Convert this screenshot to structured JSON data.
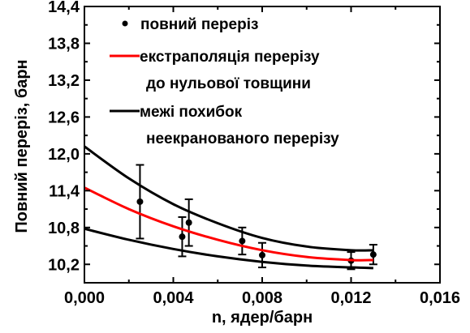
{
  "chart_data": {
    "type": "scatter",
    "xlabel": "n, ядер/барн",
    "ylabel": "Повний переріз, барн",
    "xlim": [
      0.0,
      0.016
    ],
    "ylim": [
      9.9,
      14.4
    ],
    "x_ticks": [
      "0,000",
      "0,004",
      "0,008",
      "0,012",
      "0,016"
    ],
    "x_tick_values": [
      0.0,
      0.004,
      0.008,
      0.012,
      0.016
    ],
    "y_ticks": [
      "10,2",
      "10,8",
      "11,4",
      "12,0",
      "12,6",
      "13,2",
      "13,8",
      "14,4"
    ],
    "y_tick_values": [
      10.2,
      10.8,
      11.4,
      12.0,
      12.6,
      13.2,
      13.8,
      14.4
    ],
    "grid": false,
    "legend_position": "top-right",
    "series": [
      {
        "name": "повний переріз",
        "kind": "points_with_errorbars",
        "color": "#000000",
        "points": [
          {
            "x": 0.0025,
            "y": 11.22,
            "err": 0.6
          },
          {
            "x": 0.0044,
            "y": 10.65,
            "err": 0.32
          },
          {
            "x": 0.0047,
            "y": 10.88,
            "err": 0.38
          },
          {
            "x": 0.0071,
            "y": 10.58,
            "err": 0.22
          },
          {
            "x": 0.008,
            "y": 10.35,
            "err": 0.2
          },
          {
            "x": 0.012,
            "y": 10.26,
            "err": 0.14
          },
          {
            "x": 0.013,
            "y": 10.36,
            "err": 0.16
          }
        ]
      },
      {
        "name": "екстраполяція перерізу до нульової товщини",
        "kind": "line",
        "color": "#ff0000",
        "x": [
          0.0,
          0.002,
          0.004,
          0.006,
          0.008,
          0.01,
          0.012,
          0.013
        ],
        "y": [
          11.45,
          11.1,
          10.82,
          10.6,
          10.43,
          10.32,
          10.27,
          10.27
        ]
      },
      {
        "name": "межі похибок неекранованого перерізу",
        "kind": "line",
        "color": "#000000",
        "x": [
          0.0,
          0.002,
          0.004,
          0.006,
          0.008,
          0.01,
          0.012,
          0.013
        ],
        "y": [
          12.12,
          11.6,
          11.18,
          10.87,
          10.63,
          10.49,
          10.43,
          10.43
        ]
      },
      {
        "name": "",
        "kind": "line",
        "color": "#000000",
        "x": [
          0.0,
          0.002,
          0.004,
          0.006,
          0.008,
          0.01,
          0.012,
          0.013
        ],
        "y": [
          10.78,
          10.6,
          10.45,
          10.33,
          10.24,
          10.18,
          10.15,
          10.14
        ]
      }
    ],
    "legend": [
      {
        "label": "повний переріз",
        "marker": "dot",
        "color": "#000000"
      },
      {
        "label_lines": [
          "екстраполяція перерізу",
          "до нульової товщини"
        ],
        "marker": "line",
        "color": "#ff0000"
      },
      {
        "label_lines": [
          "межі похибок",
          "неекранованого перерізу"
        ],
        "marker": "line",
        "color": "#000000"
      }
    ]
  }
}
